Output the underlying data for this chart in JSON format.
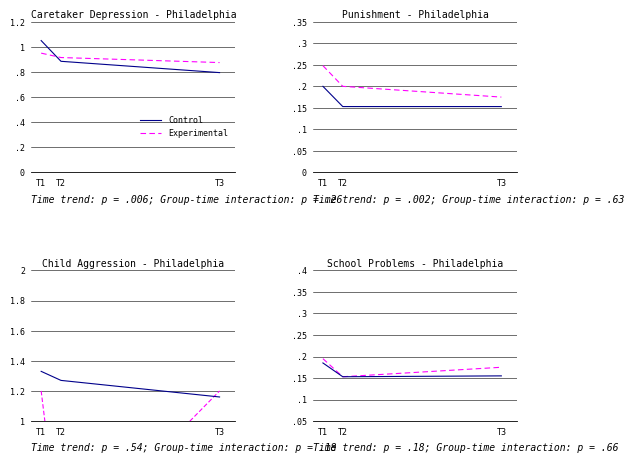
{
  "charts": [
    {
      "title": "Caretaker Depression - Philadelphia",
      "caption": "Time trend: p = .006; Group-time interaction: p = .26",
      "ylim": [
        0,
        1.2
      ],
      "yticks": [
        0,
        0.2,
        0.4,
        0.6,
        0.8,
        1.0,
        1.2
      ],
      "ytick_labels": [
        "0",
        ".2",
        ".4",
        ".6",
        ".8",
        "1",
        "1.2"
      ],
      "control": {
        "x": [
          1,
          2,
          10
        ],
        "y": [
          1.05,
          0.885,
          0.795
        ]
      },
      "experimental": {
        "x": [
          1,
          2,
          10
        ],
        "y": [
          0.95,
          0.915,
          0.875
        ]
      },
      "show_legend": true
    },
    {
      "title": "Punishment - Philadelphia",
      "caption": "Time trend: p = .002; Group-time interaction: p = .63",
      "ylim": [
        0,
        0.35
      ],
      "yticks": [
        0,
        0.05,
        0.1,
        0.15,
        0.2,
        0.25,
        0.3,
        0.35
      ],
      "ytick_labels": [
        "0",
        ".05",
        ".1",
        ".15",
        ".2",
        ".25",
        ".3",
        ".35"
      ],
      "control": {
        "x": [
          1,
          2,
          10
        ],
        "y": [
          0.2,
          0.153,
          0.153
        ]
      },
      "experimental": {
        "x": [
          1,
          2,
          10
        ],
        "y": [
          0.248,
          0.2,
          0.175
        ]
      },
      "show_legend": false
    },
    {
      "title": "Child Aggression - Philadelphia",
      "caption": "Time trend: p = .54; Group-time interaction: p = .18",
      "ylim": [
        1.0,
        2.0
      ],
      "yticks": [
        1.0,
        1.2,
        1.4,
        1.6,
        1.8,
        2.0
      ],
      "ytick_labels": [
        "1",
        "1.2",
        "1.4",
        "1.6",
        "1.8",
        "2"
      ],
      "control": {
        "x": [
          1,
          2,
          10
        ],
        "y": [
          1.33,
          1.27,
          1.16
        ]
      },
      "experimental_segments": [
        {
          "x": [
            1,
            2
          ],
          "y": [
            1.2,
            0.13
          ]
        },
        {
          "x": [
            2,
            10
          ],
          "y": [
            0.13,
            1.2
          ]
        }
      ],
      "show_legend": false
    },
    {
      "title": "School Problems - Philadelphia",
      "caption": "Time trend: p = .18; Group-time interaction: p = .66",
      "ylim": [
        0.05,
        0.4
      ],
      "yticks": [
        0.05,
        0.1,
        0.15,
        0.2,
        0.25,
        0.3,
        0.35,
        0.4
      ],
      "ytick_labels": [
        ".05",
        ".1",
        ".15",
        ".2",
        ".25",
        ".3",
        ".35",
        ".4"
      ],
      "control": {
        "x": [
          1,
          2,
          10
        ],
        "y": [
          0.185,
          0.153,
          0.155
        ]
      },
      "experimental": {
        "x": [
          1,
          2,
          10
        ],
        "y": [
          0.195,
          0.153,
          0.175
        ]
      },
      "show_legend": false
    }
  ],
  "control_color": "#00008B",
  "experimental_color": "#FF00FF",
  "control_label": "Control",
  "experimental_label": "Experimental",
  "xtick_positions": [
    1,
    2,
    10
  ],
  "xtick_labels": [
    "T1",
    "T2",
    "T3"
  ],
  "bg_color": "#ffffff",
  "font_size_title": 7,
  "font_size_caption": 7,
  "font_size_tick": 6,
  "font_size_legend": 6
}
